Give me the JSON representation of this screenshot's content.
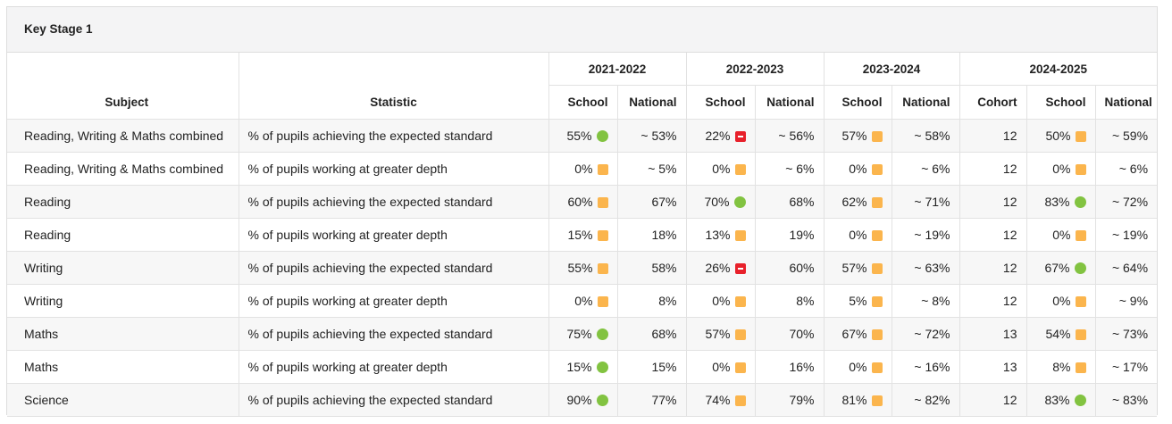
{
  "title": "Key Stage 1",
  "headers": {
    "subject": "Subject",
    "statistic": "Statistic",
    "years": [
      "2021-2022",
      "2022-2023",
      "2023-2024",
      "2024-2025"
    ],
    "school": "School",
    "national": "National",
    "cohort": "Cohort"
  },
  "status_colors": {
    "green": "#82c341",
    "amber": "#fbb54d",
    "red": "#e8212b"
  },
  "rows": [
    {
      "subject": "Reading, Writing & Maths combined",
      "statistic": "% of pupils achieving the expected standard",
      "y1": {
        "school": "55%",
        "ind": "green",
        "national": "~ 53%"
      },
      "y2": {
        "school": "22%",
        "ind": "red",
        "national": "~ 56%"
      },
      "y3": {
        "school": "57%",
        "ind": "amber",
        "national": "~ 58%"
      },
      "y4": {
        "cohort": "12",
        "school": "50%",
        "ind": "amber",
        "national": "~ 59%"
      }
    },
    {
      "subject": "Reading, Writing & Maths combined",
      "statistic": "% of pupils working at greater depth",
      "y1": {
        "school": "0%",
        "ind": "amber",
        "national": "~ 5%"
      },
      "y2": {
        "school": "0%",
        "ind": "amber",
        "national": "~ 6%"
      },
      "y3": {
        "school": "0%",
        "ind": "amber",
        "national": "~ 6%"
      },
      "y4": {
        "cohort": "12",
        "school": "0%",
        "ind": "amber",
        "national": "~ 6%"
      }
    },
    {
      "subject": "Reading",
      "statistic": "% of pupils achieving the expected standard",
      "y1": {
        "school": "60%",
        "ind": "amber",
        "national": "67%"
      },
      "y2": {
        "school": "70%",
        "ind": "green",
        "national": "68%"
      },
      "y3": {
        "school": "62%",
        "ind": "amber",
        "national": "~ 71%"
      },
      "y4": {
        "cohort": "12",
        "school": "83%",
        "ind": "green",
        "national": "~ 72%"
      }
    },
    {
      "subject": "Reading",
      "statistic": "% of pupils working at greater depth",
      "y1": {
        "school": "15%",
        "ind": "amber",
        "national": "18%"
      },
      "y2": {
        "school": "13%",
        "ind": "amber",
        "national": "19%"
      },
      "y3": {
        "school": "0%",
        "ind": "amber",
        "national": "~ 19%"
      },
      "y4": {
        "cohort": "12",
        "school": "0%",
        "ind": "amber",
        "national": "~ 19%"
      }
    },
    {
      "subject": "Writing",
      "statistic": "% of pupils achieving the expected standard",
      "y1": {
        "school": "55%",
        "ind": "amber",
        "national": "58%"
      },
      "y2": {
        "school": "26%",
        "ind": "red",
        "national": "60%"
      },
      "y3": {
        "school": "57%",
        "ind": "amber",
        "national": "~ 63%"
      },
      "y4": {
        "cohort": "12",
        "school": "67%",
        "ind": "green",
        "national": "~ 64%"
      }
    },
    {
      "subject": "Writing",
      "statistic": "% of pupils working at greater depth",
      "y1": {
        "school": "0%",
        "ind": "amber",
        "national": "8%"
      },
      "y2": {
        "school": "0%",
        "ind": "amber",
        "national": "8%"
      },
      "y3": {
        "school": "5%",
        "ind": "amber",
        "national": "~ 8%"
      },
      "y4": {
        "cohort": "12",
        "school": "0%",
        "ind": "amber",
        "national": "~ 9%"
      }
    },
    {
      "subject": "Maths",
      "statistic": "% of pupils achieving the expected standard",
      "y1": {
        "school": "75%",
        "ind": "green",
        "national": "68%"
      },
      "y2": {
        "school": "57%",
        "ind": "amber",
        "national": "70%"
      },
      "y3": {
        "school": "67%",
        "ind": "amber",
        "national": "~ 72%"
      },
      "y4": {
        "cohort": "13",
        "school": "54%",
        "ind": "amber",
        "national": "~ 73%"
      }
    },
    {
      "subject": "Maths",
      "statistic": "% of pupils working at greater depth",
      "y1": {
        "school": "15%",
        "ind": "green",
        "national": "15%"
      },
      "y2": {
        "school": "0%",
        "ind": "amber",
        "national": "16%"
      },
      "y3": {
        "school": "0%",
        "ind": "amber",
        "national": "~ 16%"
      },
      "y4": {
        "cohort": "13",
        "school": "8%",
        "ind": "amber",
        "national": "~ 17%"
      }
    },
    {
      "subject": "Science",
      "statistic": "% of pupils achieving the expected standard",
      "y1": {
        "school": "90%",
        "ind": "green",
        "national": "77%"
      },
      "y2": {
        "school": "74%",
        "ind": "amber",
        "national": "79%"
      },
      "y3": {
        "school": "81%",
        "ind": "amber",
        "national": "~ 82%"
      },
      "y4": {
        "cohort": "12",
        "school": "83%",
        "ind": "green",
        "national": "~ 83%"
      }
    }
  ]
}
